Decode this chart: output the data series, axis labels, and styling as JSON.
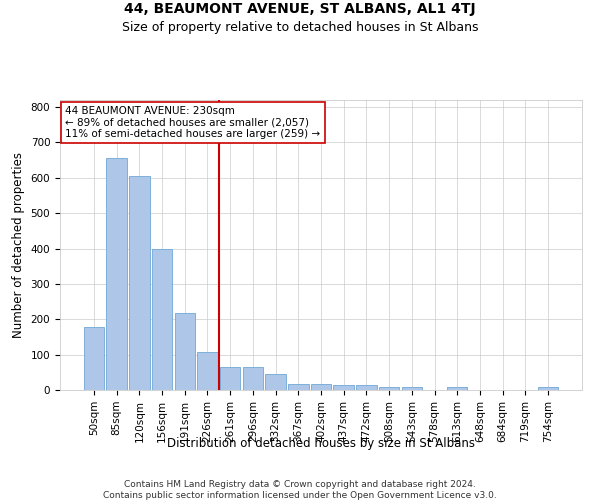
{
  "title": "44, BEAUMONT AVENUE, ST ALBANS, AL1 4TJ",
  "subtitle": "Size of property relative to detached houses in St Albans",
  "xlabel": "Distribution of detached houses by size in St Albans",
  "ylabel": "Number of detached properties",
  "footer_line1": "Contains HM Land Registry data © Crown copyright and database right 2024.",
  "footer_line2": "Contains public sector information licensed under the Open Government Licence v3.0.",
  "bar_labels": [
    "50sqm",
    "85sqm",
    "120sqm",
    "156sqm",
    "191sqm",
    "226sqm",
    "261sqm",
    "296sqm",
    "332sqm",
    "367sqm",
    "402sqm",
    "437sqm",
    "472sqm",
    "508sqm",
    "543sqm",
    "578sqm",
    "613sqm",
    "648sqm",
    "684sqm",
    "719sqm",
    "754sqm"
  ],
  "bar_values": [
    178,
    655,
    605,
    400,
    218,
    108,
    65,
    65,
    45,
    18,
    17,
    15,
    13,
    8,
    8,
    0,
    9,
    0,
    0,
    0,
    8
  ],
  "bar_color": "#aec6e8",
  "bar_edge_color": "#6fa8d6",
  "property_label": "44 BEAUMONT AVENUE: 230sqm",
  "annotation_line1": "← 89% of detached houses are smaller (2,057)",
  "annotation_line2": "11% of semi-detached houses are larger (259) →",
  "vline_color": "#cc0000",
  "vline_x": 5.5,
  "ylim": [
    0,
    820
  ],
  "yticks": [
    0,
    100,
    200,
    300,
    400,
    500,
    600,
    700,
    800
  ],
  "annotation_box_color": "#ffffff",
  "annotation_box_edge": "#cc0000",
  "title_fontsize": 10,
  "subtitle_fontsize": 9,
  "xlabel_fontsize": 8.5,
  "ylabel_fontsize": 8.5,
  "tick_fontsize": 7.5,
  "annotation_fontsize": 7.5,
  "footer_fontsize": 6.5
}
